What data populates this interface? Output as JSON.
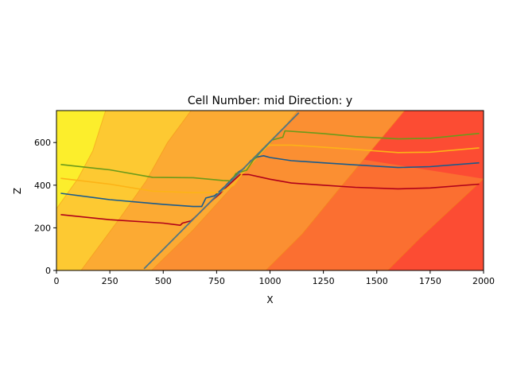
{
  "chart_data": {
    "type": "contour",
    "title": "Cell Number: mid Direction: y",
    "xlabel": "X",
    "ylabel": "Z",
    "xlim": [
      0,
      2000
    ],
    "ylim": [
      0,
      750
    ],
    "xticks": [
      0,
      250,
      500,
      750,
      1000,
      1250,
      1500,
      1750,
      2000
    ],
    "yticks": [
      0,
      200,
      400,
      600
    ],
    "grid": false,
    "legend": "none",
    "background_fields": [
      {
        "level": 1,
        "color": "#fcee2c",
        "boundary": [
          [
            0,
            290
          ],
          [
            100,
            430
          ],
          [
            170,
            560
          ],
          [
            230,
            750
          ]
        ]
      },
      {
        "level": 2,
        "color": "#fdc932",
        "boundary": [
          [
            115,
            0
          ],
          [
            300,
            250
          ],
          [
            420,
            420
          ],
          [
            520,
            600
          ],
          [
            630,
            750
          ]
        ]
      },
      {
        "level": 3,
        "color": "#fcaa33",
        "boundary": [
          [
            445,
            0
          ],
          [
            640,
            190
          ],
          [
            830,
            400
          ],
          [
            1000,
            590
          ],
          [
            1130,
            750
          ]
        ]
      },
      {
        "level": 4,
        "color": "#fb8f32",
        "boundary": [
          [
            980,
            0
          ],
          [
            1150,
            170
          ],
          [
            1330,
            390
          ],
          [
            1480,
            570
          ],
          [
            1630,
            750
          ]
        ]
      },
      {
        "level": 5,
        "color": "#fb6f31",
        "boundary": [
          [
            1550,
            0
          ],
          [
            1700,
            150
          ],
          [
            1850,
            290
          ],
          [
            2000,
            430
          ]
        ]
      },
      {
        "level": 6,
        "color": "#fc4c33"
      }
    ],
    "fault": {
      "color": "#527682",
      "points": [
        [
          410,
          8
        ],
        [
          1135,
          740
        ]
      ]
    },
    "series": [
      {
        "color": "#b0001a",
        "points": [
          [
            20,
            262
          ],
          [
            250,
            238
          ],
          [
            500,
            222
          ],
          [
            580,
            212
          ],
          [
            590,
            222
          ],
          [
            630,
            233
          ],
          [
            660,
            260
          ],
          [
            700,
            300
          ],
          [
            730,
            330
          ],
          [
            760,
            355
          ],
          [
            800,
            395
          ],
          [
            860,
            450
          ],
          [
            900,
            450
          ],
          [
            1000,
            428
          ],
          [
            1100,
            410
          ],
          [
            1250,
            400
          ],
          [
            1400,
            390
          ],
          [
            1600,
            383
          ],
          [
            1750,
            387
          ],
          [
            1980,
            405
          ]
        ]
      },
      {
        "color": "#1a5b8c",
        "points": [
          [
            20,
            362
          ],
          [
            250,
            332
          ],
          [
            500,
            310
          ],
          [
            640,
            300
          ],
          [
            680,
            300
          ],
          [
            700,
            340
          ],
          [
            740,
            350
          ],
          [
            790,
            395
          ],
          [
            850,
            460
          ],
          [
            880,
            480
          ],
          [
            910,
            515
          ],
          [
            940,
            532
          ],
          [
            970,
            538
          ],
          [
            1000,
            530
          ],
          [
            1100,
            515
          ],
          [
            1250,
            505
          ],
          [
            1400,
            495
          ],
          [
            1600,
            483
          ],
          [
            1750,
            487
          ],
          [
            1980,
            505
          ]
        ]
      },
      {
        "color": "#fcb317",
        "points": [
          [
            20,
            432
          ],
          [
            250,
            405
          ],
          [
            450,
            372
          ],
          [
            640,
            365
          ],
          [
            760,
            365
          ],
          [
            830,
            400
          ],
          [
            870,
            455
          ],
          [
            900,
            500
          ],
          [
            920,
            525
          ],
          [
            960,
            565
          ],
          [
            1000,
            588
          ],
          [
            1100,
            588
          ],
          [
            1250,
            578
          ],
          [
            1400,
            568
          ],
          [
            1600,
            553
          ],
          [
            1750,
            555
          ],
          [
            1980,
            575
          ]
        ]
      },
      {
        "color": "#6b9a1a",
        "points": [
          [
            20,
            497
          ],
          [
            250,
            472
          ],
          [
            450,
            437
          ],
          [
            640,
            435
          ],
          [
            780,
            422
          ],
          [
            820,
            420
          ],
          [
            840,
            455
          ],
          [
            890,
            470
          ],
          [
            920,
            515
          ],
          [
            970,
            570
          ],
          [
            1010,
            612
          ],
          [
            1060,
            625
          ],
          [
            1070,
            655
          ],
          [
            1250,
            642
          ],
          [
            1400,
            628
          ],
          [
            1600,
            617
          ],
          [
            1750,
            620
          ],
          [
            1980,
            643
          ]
        ]
      }
    ]
  }
}
